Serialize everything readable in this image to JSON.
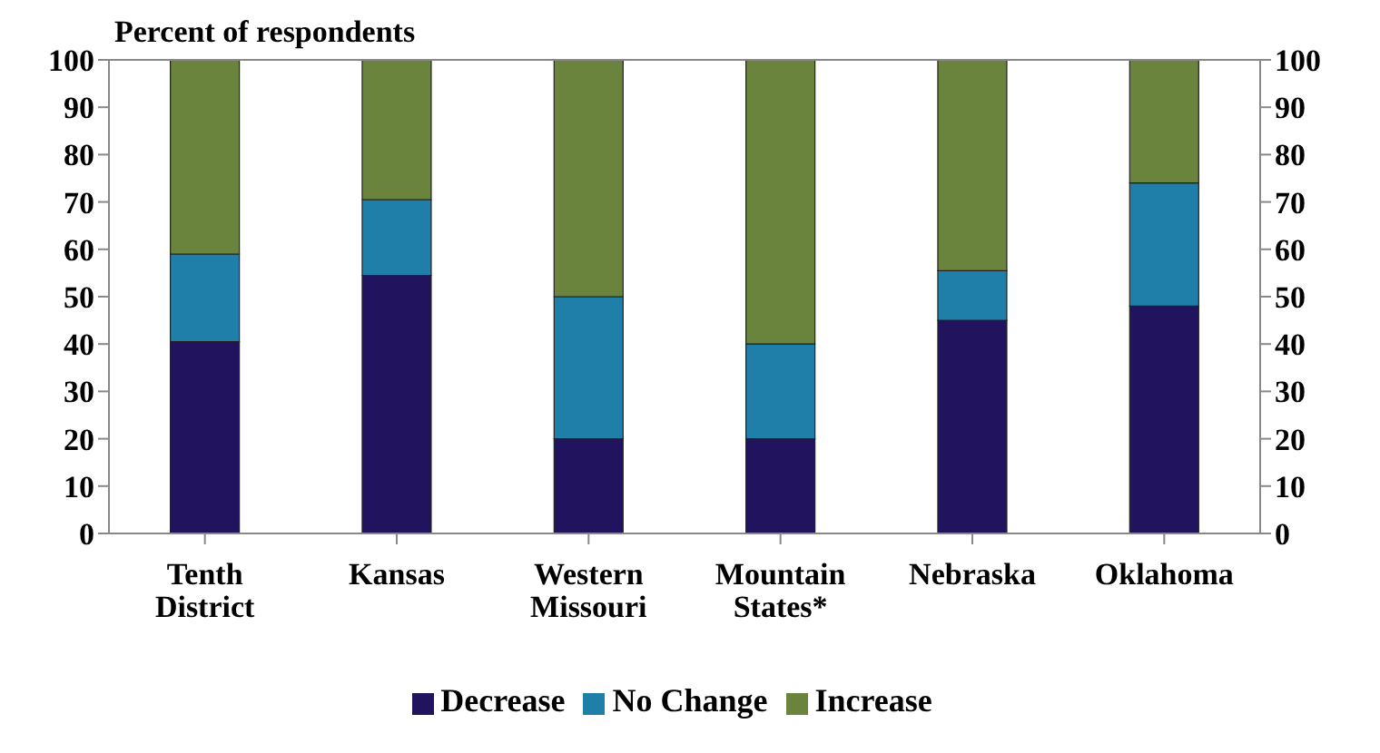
{
  "chart_data": {
    "type": "bar",
    "stacked": true,
    "ylabel": "Percent of respondents",
    "categories": [
      "Tenth District",
      "Kansas",
      "Western Missouri",
      "Mountain States*",
      "Nebraska",
      "Oklahoma"
    ],
    "series": [
      {
        "name": "Decrease",
        "color": "#22135e",
        "values": [
          40.5,
          54.5,
          20,
          20,
          45,
          48
        ]
      },
      {
        "name": "No Change",
        "color": "#1f7fa8",
        "values": [
          18.5,
          16,
          30,
          20,
          10.5,
          26
        ]
      },
      {
        "name": "Increase",
        "color": "#6b843d",
        "values": [
          41,
          29.5,
          50,
          60,
          44.5,
          26
        ]
      }
    ],
    "ylim": [
      0,
      100
    ],
    "yticks": [
      0,
      10,
      20,
      30,
      40,
      50,
      60,
      70,
      80,
      90,
      100
    ],
    "y2lim": [
      0,
      100
    ],
    "y2ticks": [
      0,
      10,
      20,
      30,
      40,
      50,
      60,
      70,
      80,
      90,
      100
    ],
    "grid": false,
    "legend": "bottom"
  }
}
